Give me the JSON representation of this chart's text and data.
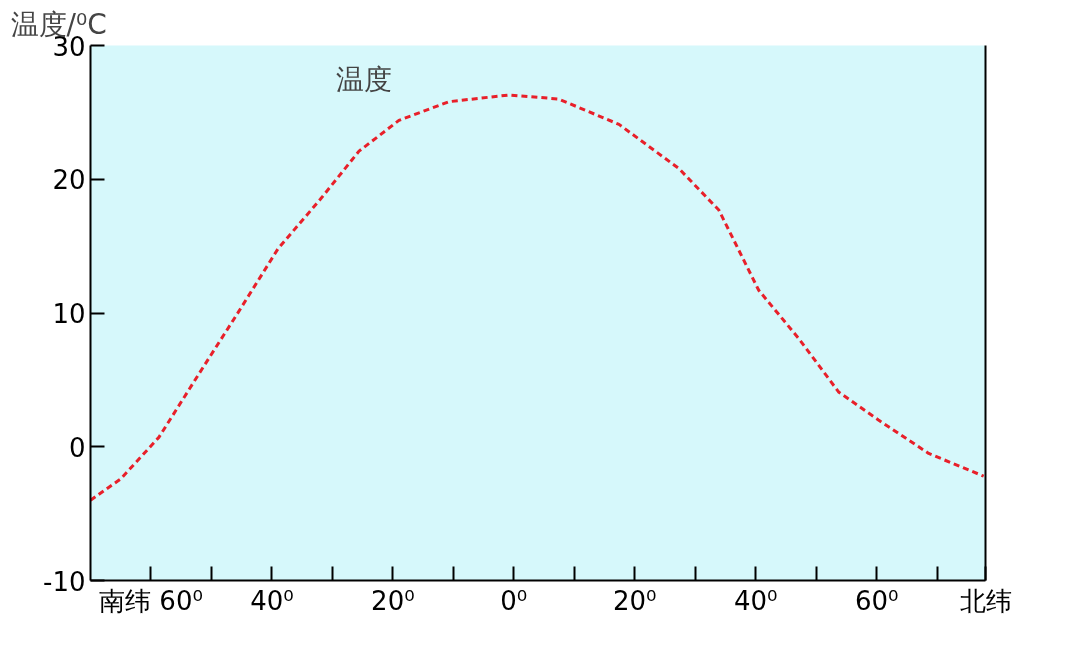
{
  "chart_data": {
    "type": "line",
    "ylabel": "温度/⁰C",
    "x": [
      -70,
      -65,
      -58.7,
      -52,
      -45.5,
      -39,
      -32,
      -25.6,
      -19,
      -10.7,
      -0.8,
      7.4,
      17.4,
      27.3,
      33.9,
      40.5,
      47.1,
      53.7,
      60.3,
      68.6,
      77.7
    ],
    "series": [
      {
        "color": "#e8202a",
        "values": [
          -4,
          -2.4,
          0.7,
          5.5,
          10.1,
          14.8,
          18.5,
          22.1,
          24.4,
          25.8,
          26.3,
          26,
          24.1,
          20.8,
          17.7,
          11.7,
          8.1,
          4.1,
          2,
          -0.5,
          -2.2
        ]
      }
    ],
    "xlim": [
      -70,
      78
    ],
    "xticks": [
      {
        "value": -60,
        "label": "南纬 60⁰"
      },
      {
        "value": -50,
        "label": null
      },
      {
        "value": -40,
        "label": "40⁰"
      },
      {
        "value": -30,
        "label": null
      },
      {
        "value": -20,
        "label": "20⁰"
      },
      {
        "value": -10,
        "label": null
      },
      {
        "value": 0,
        "label": "0⁰"
      },
      {
        "value": 10,
        "label": null
      },
      {
        "value": 20,
        "label": "20⁰"
      },
      {
        "value": 30,
        "label": null
      },
      {
        "value": 40,
        "label": "40⁰"
      },
      {
        "value": 50,
        "label": null
      },
      {
        "value": 60,
        "label": "60⁰"
      },
      {
        "value": 70,
        "label": null
      },
      {
        "value": 78,
        "label": "北纬"
      }
    ],
    "ylim": [
      -10,
      30
    ],
    "yticks": [
      -10,
      0,
      10,
      20,
      30
    ],
    "annotations": [
      "温度"
    ],
    "grid": false,
    "marker": "none",
    "line_style": "dashed"
  }
}
